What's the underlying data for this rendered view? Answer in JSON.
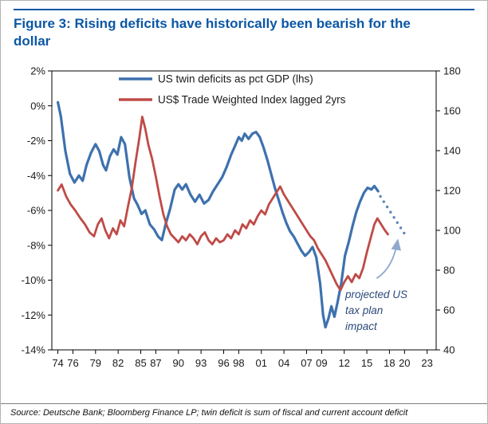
{
  "figure": {
    "title": "Figure 3: Rising deficits have historically been bearish for the dollar",
    "accent_color": "#0b57a4",
    "source": "Source: Deutsche Bank; Bloomberg Finance LP; twin deficit is sum of fiscal and current account deficit"
  },
  "chart_data": {
    "type": "line",
    "title": "Figure 3: Rising deficits have historically been bearish for the dollar",
    "grid": false,
    "axis_color": "#000000",
    "text_color": "#1a1a1a",
    "legend_position": "top-inside",
    "x_axis": {
      "range": [
        1973.2,
        2024.2
      ],
      "tick_labels": [
        "74",
        "76",
        "79",
        "82",
        "85",
        "87",
        "90",
        "93",
        "96",
        "98",
        "01",
        "04",
        "07",
        "09",
        "12",
        "15",
        "18",
        "20",
        "23"
      ],
      "tick_years": [
        1974,
        1976,
        1979,
        1982,
        1985,
        1987,
        1990,
        1993,
        1996,
        1998,
        2001,
        2004,
        2007,
        2009,
        2012,
        2015,
        2018,
        2020,
        2023
      ]
    },
    "left_axis": {
      "range": [
        2,
        -14
      ],
      "labels": [
        "2%",
        "0%",
        "-2%",
        "-4%",
        "-6%",
        "-8%",
        "-10%",
        "-12%",
        "-14%"
      ],
      "values": [
        2,
        0,
        -2,
        -4,
        -6,
        -8,
        -10,
        -12,
        -14
      ]
    },
    "right_axis": {
      "range": [
        180,
        40
      ],
      "labels": [
        "180",
        "160",
        "140",
        "120",
        "100",
        "80",
        "60",
        "40"
      ],
      "values": [
        180,
        160,
        140,
        120,
        100,
        80,
        60,
        40
      ]
    },
    "legend": [
      {
        "label": "US twin deficits as pct GDP (lhs)",
        "color": "#3e71ae"
      },
      {
        "label": "US$ Trade Weighted Index lagged 2yrs",
        "color": "#bf4b47"
      }
    ],
    "series": [
      {
        "name": "US twin deficits as pct GDP (lhs)",
        "data_name": "twin-deficits-line",
        "axis": "left",
        "color": "#3e71ae",
        "style": "solid",
        "stroke_width": 3.2,
        "points": [
          [
            1974.0,
            0.2
          ],
          [
            1974.4,
            -0.6
          ],
          [
            1975.0,
            -2.6
          ],
          [
            1975.6,
            -3.9
          ],
          [
            1976.2,
            -4.4
          ],
          [
            1976.8,
            -4.0
          ],
          [
            1977.3,
            -4.3
          ],
          [
            1977.8,
            -3.4
          ],
          [
            1978.4,
            -2.7
          ],
          [
            1979.0,
            -2.2
          ],
          [
            1979.5,
            -2.6
          ],
          [
            1980.0,
            -3.4
          ],
          [
            1980.4,
            -3.7
          ],
          [
            1980.9,
            -2.9
          ],
          [
            1981.4,
            -2.5
          ],
          [
            1981.9,
            -2.8
          ],
          [
            1982.4,
            -1.8
          ],
          [
            1982.9,
            -2.2
          ],
          [
            1983.5,
            -4.1
          ],
          [
            1984.1,
            -5.3
          ],
          [
            1984.6,
            -5.7
          ],
          [
            1985.1,
            -6.2
          ],
          [
            1985.6,
            -6.0
          ],
          [
            1986.2,
            -6.8
          ],
          [
            1986.8,
            -7.1
          ],
          [
            1987.3,
            -7.5
          ],
          [
            1987.8,
            -7.7
          ],
          [
            1988.3,
            -6.8
          ],
          [
            1988.9,
            -5.9
          ],
          [
            1989.5,
            -4.8
          ],
          [
            1990.0,
            -4.5
          ],
          [
            1990.5,
            -4.8
          ],
          [
            1991.0,
            -4.5
          ],
          [
            1991.6,
            -5.1
          ],
          [
            1992.2,
            -5.5
          ],
          [
            1992.8,
            -5.1
          ],
          [
            1993.4,
            -5.6
          ],
          [
            1994.0,
            -5.4
          ],
          [
            1994.6,
            -4.9
          ],
          [
            1995.2,
            -4.5
          ],
          [
            1995.8,
            -4.1
          ],
          [
            1996.4,
            -3.5
          ],
          [
            1997.0,
            -2.8
          ],
          [
            1997.5,
            -2.3
          ],
          [
            1998.0,
            -1.8
          ],
          [
            1998.4,
            -2.0
          ],
          [
            1998.8,
            -1.6
          ],
          [
            1999.3,
            -1.9
          ],
          [
            1999.8,
            -1.6
          ],
          [
            2000.3,
            -1.5
          ],
          [
            2000.8,
            -1.8
          ],
          [
            2001.3,
            -2.4
          ],
          [
            2001.8,
            -3.1
          ],
          [
            2002.3,
            -3.9
          ],
          [
            2002.8,
            -4.7
          ],
          [
            2003.3,
            -5.4
          ],
          [
            2003.8,
            -6.1
          ],
          [
            2004.3,
            -6.7
          ],
          [
            2004.8,
            -7.2
          ],
          [
            2005.3,
            -7.5
          ],
          [
            2005.8,
            -7.9
          ],
          [
            2006.3,
            -8.3
          ],
          [
            2006.8,
            -8.6
          ],
          [
            2007.3,
            -8.4
          ],
          [
            2007.8,
            -8.1
          ],
          [
            2008.3,
            -8.7
          ],
          [
            2008.8,
            -10.2
          ],
          [
            2009.2,
            -12.0
          ],
          [
            2009.5,
            -12.7
          ],
          [
            2009.9,
            -12.2
          ],
          [
            2010.3,
            -11.5
          ],
          [
            2010.7,
            -12.1
          ],
          [
            2011.1,
            -11.3
          ],
          [
            2011.6,
            -10.2
          ],
          [
            2012.1,
            -8.6
          ],
          [
            2012.6,
            -7.8
          ],
          [
            2013.1,
            -6.9
          ],
          [
            2013.6,
            -6.1
          ],
          [
            2014.1,
            -5.5
          ],
          [
            2014.6,
            -5.0
          ],
          [
            2015.1,
            -4.7
          ],
          [
            2015.6,
            -4.8
          ],
          [
            2016.0,
            -4.6
          ],
          [
            2016.5,
            -4.9
          ]
        ]
      },
      {
        "name": "US twin deficits projected (tax plan impact)",
        "data_name": "projection-dots",
        "axis": "left",
        "color": "#5d86b8",
        "style": "dots",
        "dot_radius": 1.7,
        "points": [
          [
            2016.8,
            -5.2
          ],
          [
            2017.25,
            -5.5
          ],
          [
            2017.7,
            -5.8
          ],
          [
            2018.15,
            -6.1
          ],
          [
            2018.6,
            -6.4
          ],
          [
            2019.05,
            -6.7
          ],
          [
            2019.5,
            -7.0
          ],
          [
            2019.95,
            -7.3
          ]
        ]
      },
      {
        "name": "US$ Trade Weighted Index lagged 2yrs",
        "data_name": "trade-weighted-index-line",
        "axis": "right",
        "color": "#bf4b47",
        "style": "solid",
        "stroke_width": 2.8,
        "points": [
          [
            1974.0,
            120
          ],
          [
            1974.5,
            123
          ],
          [
            1975.1,
            117
          ],
          [
            1975.7,
            113
          ],
          [
            1976.3,
            110
          ],
          [
            1977.0,
            106
          ],
          [
            1977.6,
            103
          ],
          [
            1978.2,
            99
          ],
          [
            1978.8,
            97
          ],
          [
            1979.3,
            103
          ],
          [
            1979.8,
            106
          ],
          [
            1980.3,
            100
          ],
          [
            1980.8,
            96
          ],
          [
            1981.3,
            101
          ],
          [
            1981.8,
            98
          ],
          [
            1982.3,
            105
          ],
          [
            1982.8,
            102
          ],
          [
            1983.3,
            112
          ],
          [
            1983.8,
            121
          ],
          [
            1984.3,
            134
          ],
          [
            1984.8,
            146
          ],
          [
            1985.2,
            157
          ],
          [
            1985.6,
            151
          ],
          [
            1986.0,
            143
          ],
          [
            1986.5,
            136
          ],
          [
            1987.0,
            127
          ],
          [
            1987.5,
            117
          ],
          [
            1988.0,
            108
          ],
          [
            1988.5,
            102
          ],
          [
            1989.0,
            98
          ],
          [
            1989.5,
            96
          ],
          [
            1990.0,
            94
          ],
          [
            1990.5,
            97
          ],
          [
            1991.0,
            95
          ],
          [
            1991.5,
            98
          ],
          [
            1992.0,
            96
          ],
          [
            1992.5,
            93
          ],
          [
            1993.0,
            97
          ],
          [
            1993.5,
            99
          ],
          [
            1994.0,
            95
          ],
          [
            1994.5,
            93
          ],
          [
            1995.0,
            96
          ],
          [
            1995.5,
            94
          ],
          [
            1996.0,
            95
          ],
          [
            1996.5,
            98
          ],
          [
            1997.0,
            96
          ],
          [
            1997.5,
            100
          ],
          [
            1998.0,
            98
          ],
          [
            1998.5,
            103
          ],
          [
            1999.0,
            101
          ],
          [
            1999.5,
            105
          ],
          [
            2000.0,
            103
          ],
          [
            2000.5,
            107
          ],
          [
            2001.0,
            110
          ],
          [
            2001.5,
            108
          ],
          [
            2002.0,
            113
          ],
          [
            2002.5,
            116
          ],
          [
            2003.0,
            119
          ],
          [
            2003.5,
            122
          ],
          [
            2004.0,
            118
          ],
          [
            2004.5,
            115
          ],
          [
            2005.0,
            112
          ],
          [
            2005.5,
            109
          ],
          [
            2006.0,
            106
          ],
          [
            2006.5,
            103
          ],
          [
            2007.0,
            100
          ],
          [
            2007.5,
            97
          ],
          [
            2008.0,
            95
          ],
          [
            2008.5,
            91
          ],
          [
            2009.0,
            88
          ],
          [
            2009.5,
            85
          ],
          [
            2010.0,
            81
          ],
          [
            2010.5,
            77
          ],
          [
            2011.0,
            73
          ],
          [
            2011.5,
            70
          ],
          [
            2012.0,
            74
          ],
          [
            2012.5,
            77
          ],
          [
            2013.0,
            74
          ],
          [
            2013.5,
            78
          ],
          [
            2014.0,
            76
          ],
          [
            2014.5,
            81
          ],
          [
            2015.0,
            89
          ],
          [
            2015.5,
            96
          ],
          [
            2016.0,
            103
          ],
          [
            2016.4,
            106
          ],
          [
            2016.9,
            103
          ],
          [
            2017.4,
            100
          ],
          [
            2017.8,
            98
          ]
        ]
      }
    ],
    "annotation": {
      "text": "projected US tax plan impact",
      "lines": [
        "projected US",
        "tax plan",
        "impact"
      ],
      "text_color": "#2c4a7a",
      "arrow_color": "#8fa9cc",
      "arrow": {
        "from": [
          2016.3,
          -9.9
        ],
        "control": [
          2018.5,
          -9.3
        ],
        "to": [
          2019.1,
          -7.7
        ]
      }
    }
  }
}
